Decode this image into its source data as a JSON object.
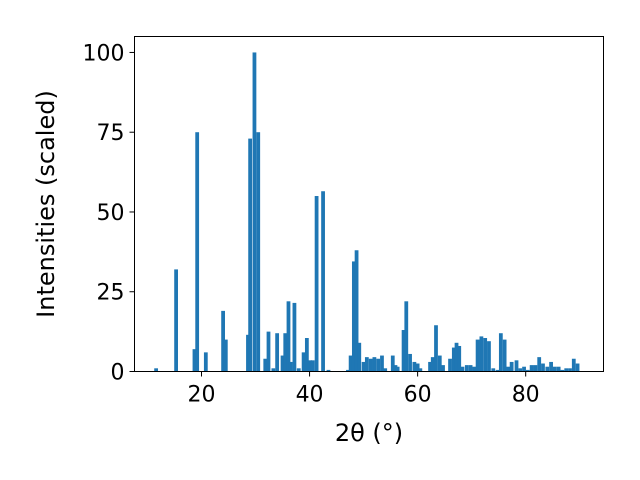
{
  "chart_data": {
    "type": "bar",
    "xlabel": "2θ (°)",
    "ylabel": "Intensities (scaled)",
    "xlim": [
      7.6,
      94.4
    ],
    "ylim": [
      0,
      105
    ],
    "xticks": [
      20,
      40,
      60,
      80
    ],
    "yticks": [
      0,
      25,
      50,
      75,
      100
    ],
    "bar_width": 0.7,
    "bar_color": "#1f77b4",
    "grid": false,
    "legend": "none",
    "x": [
      11.6,
      15.3,
      18.7,
      19.2,
      20.8,
      24.0,
      24.5,
      28.6,
      29.0,
      29.8,
      30.5,
      31.8,
      32.4,
      33.3,
      34.0,
      35.0,
      35.5,
      36.1,
      36.5,
      37.2,
      38.0,
      38.9,
      39.5,
      40.1,
      40.6,
      41.3,
      42.5,
      43.5,
      47.1,
      47.6,
      48.2,
      48.7,
      49.2,
      50.0,
      50.6,
      51.3,
      52.0,
      52.7,
      53.4,
      54.0,
      55.4,
      55.9,
      56.3,
      57.4,
      57.9,
      58.6,
      59.4,
      60.0,
      60.5,
      62.3,
      62.8,
      63.4,
      64.1,
      64.7,
      66.0,
      66.7,
      67.2,
      67.7,
      68.3,
      69.1,
      69.8,
      70.5,
      71.1,
      71.8,
      72.5,
      73.2,
      74.0,
      74.8,
      75.4,
      76.1,
      76.8,
      77.4,
      78.3,
      79.0,
      79.7,
      80.4,
      81.1,
      81.8,
      82.5,
      83.2,
      84.0,
      84.7,
      85.4,
      86.1,
      86.8,
      87.5,
      88.2,
      88.9,
      89.6
    ],
    "values": [
      1,
      32,
      7,
      75,
      6,
      19,
      10,
      11.5,
      73,
      100,
      75,
      4,
      12.5,
      1,
      12,
      5,
      12,
      22,
      3,
      21.5,
      1,
      6,
      10.5,
      3.5,
      3.5,
      55,
      56.5,
      0.5,
      0.5,
      5,
      34.5,
      38,
      9,
      3,
      4.5,
      4,
      4.5,
      4,
      5,
      1,
      5,
      2,
      1.5,
      13,
      22,
      5.5,
      3,
      2.5,
      1,
      3,
      4.5,
      14.5,
      5,
      2,
      4,
      7.5,
      9,
      8,
      1.5,
      2,
      2,
      1.5,
      10,
      11,
      10.5,
      9.5,
      1,
      0.5,
      12,
      10,
      1.5,
      3,
      3.5,
      1,
      1.5,
      0.5,
      2,
      2,
      4.5,
      2.5,
      1.5,
      3,
      1.5,
      1.5,
      0.5,
      1,
      1,
      4,
      2.5
    ]
  }
}
